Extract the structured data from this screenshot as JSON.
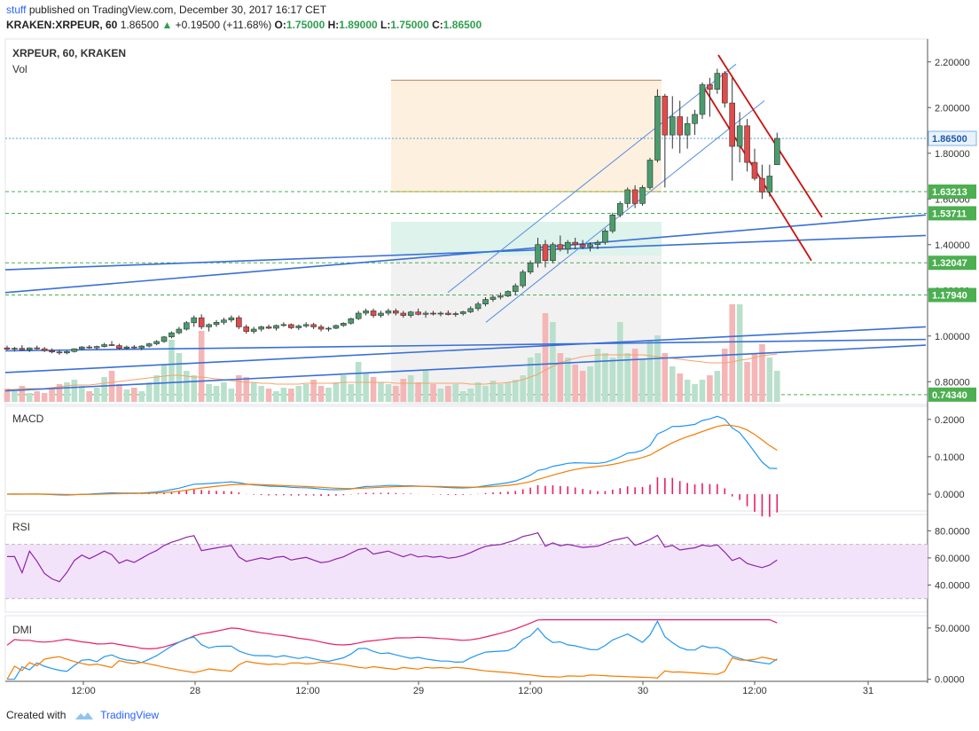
{
  "header": {
    "author": "stuff",
    "published_text": "published on TradingView.com, December 30, 2017 16:17 CET",
    "symbol": "KRAKEN:XRPEUR, 60",
    "last": "1.86500",
    "change": "+0.19500 (+11.68%)",
    "o_label": "O:",
    "o": "1.75000",
    "h_label": "H:",
    "h": "1.89000",
    "l_label": "L:",
    "l": "1.75000",
    "c_label": "C:",
    "c": "1.86500"
  },
  "footer": {
    "created_with": "Created with",
    "brand": "TradingView"
  },
  "colors": {
    "up": "#4a9c6d",
    "down": "#e04b4b",
    "trend": "#3a6fd8",
    "red_trend": "#cc1111",
    "macd": "#2196f3",
    "signal": "#f57c00",
    "rsi": "#8e24aa",
    "dmi_adx": "#e91e63",
    "dmi_plus": "#2196f3",
    "dmi_minus": "#f57c00"
  },
  "chart_data": {
    "type": "candlestick",
    "panel_title": "XRPEUR, 60, KRAKEN",
    "volume_label": "Vol",
    "x_ticks": [
      "12:00",
      "28",
      "12:00",
      "29",
      "12:00",
      "30",
      "12:00",
      "31"
    ],
    "price_axis": [
      "2.20000",
      "2.00000",
      "1.80000",
      "1.60000",
      "1.40000",
      "1.20000",
      "1.00000",
      "0.80000"
    ],
    "price_range": [
      0.7,
      2.3
    ],
    "price_tags": [
      {
        "label": "1.86500",
        "value": 1.865,
        "style": "current"
      },
      {
        "label": "1.63213",
        "value": 1.63213,
        "style": "level"
      },
      {
        "label": "1.53711",
        "value": 1.53711,
        "style": "level"
      },
      {
        "label": "1.32047",
        "value": 1.32047,
        "style": "level"
      },
      {
        "label": "1.17940",
        "value": 1.1794,
        "style": "level"
      },
      {
        "label": "0.74340",
        "value": 0.7434,
        "style": "level"
      }
    ],
    "candles": [
      [
        0.948,
        0.958,
        0.938,
        0.942
      ],
      [
        0.942,
        0.952,
        0.932,
        0.946
      ],
      [
        0.946,
        0.96,
        0.938,
        0.94
      ],
      [
        0.94,
        0.95,
        0.93,
        0.948
      ],
      [
        0.948,
        0.958,
        0.94,
        0.944
      ],
      [
        0.944,
        0.952,
        0.93,
        0.936
      ],
      [
        0.936,
        0.946,
        0.924,
        0.93
      ],
      [
        0.93,
        0.94,
        0.918,
        0.926
      ],
      [
        0.926,
        0.936,
        0.92,
        0.932
      ],
      [
        0.932,
        0.946,
        0.928,
        0.944
      ],
      [
        0.944,
        0.956,
        0.94,
        0.952
      ],
      [
        0.952,
        0.96,
        0.944,
        0.948
      ],
      [
        0.948,
        0.958,
        0.94,
        0.954
      ],
      [
        0.954,
        0.97,
        0.95,
        0.962
      ],
      [
        0.962,
        0.978,
        0.956,
        0.958
      ],
      [
        0.958,
        0.966,
        0.94,
        0.946
      ],
      [
        0.946,
        0.958,
        0.94,
        0.952
      ],
      [
        0.952,
        0.96,
        0.944,
        0.948
      ],
      [
        0.948,
        0.96,
        0.938,
        0.956
      ],
      [
        0.956,
        0.97,
        0.95,
        0.966
      ],
      [
        0.966,
        0.982,
        0.96,
        0.976
      ],
      [
        0.976,
        1.0,
        0.97,
        0.996
      ],
      [
        0.996,
        1.02,
        0.99,
        1.014
      ],
      [
        1.014,
        1.04,
        1.008,
        1.03
      ],
      [
        1.03,
        1.065,
        1.024,
        1.058
      ],
      [
        1.058,
        1.09,
        1.04,
        1.08
      ],
      [
        1.08,
        1.095,
        1.03,
        1.04
      ],
      [
        1.04,
        1.055,
        1.02,
        1.05
      ],
      [
        1.05,
        1.07,
        1.04,
        1.06
      ],
      [
        1.06,
        1.08,
        1.05,
        1.07
      ],
      [
        1.07,
        1.09,
        1.06,
        1.08
      ],
      [
        1.08,
        1.09,
        1.03,
        1.04
      ],
      [
        1.04,
        1.05,
        1.01,
        1.02
      ],
      [
        1.02,
        1.04,
        1.01,
        1.03
      ],
      [
        1.03,
        1.045,
        1.02,
        1.04
      ],
      [
        1.04,
        1.05,
        1.03,
        1.034
      ],
      [
        1.034,
        1.05,
        1.024,
        1.046
      ],
      [
        1.046,
        1.06,
        1.04,
        1.05
      ],
      [
        1.05,
        1.055,
        1.03,
        1.036
      ],
      [
        1.036,
        1.05,
        1.026,
        1.044
      ],
      [
        1.044,
        1.06,
        1.036,
        1.05
      ],
      [
        1.05,
        1.058,
        1.03,
        1.04
      ],
      [
        1.04,
        1.05,
        1.02,
        1.03
      ],
      [
        1.03,
        1.04,
        1.02,
        1.034
      ],
      [
        1.034,
        1.05,
        1.03,
        1.046
      ],
      [
        1.046,
        1.06,
        1.04,
        1.056
      ],
      [
        1.056,
        1.08,
        1.05,
        1.076
      ],
      [
        1.076,
        1.11,
        1.07,
        1.1
      ],
      [
        1.1,
        1.12,
        1.09,
        1.11
      ],
      [
        1.11,
        1.12,
        1.08,
        1.09
      ],
      [
        1.09,
        1.11,
        1.08,
        1.1
      ],
      [
        1.1,
        1.12,
        1.09,
        1.11
      ],
      [
        1.11,
        1.12,
        1.09,
        1.1
      ],
      [
        1.1,
        1.11,
        1.08,
        1.09
      ],
      [
        1.09,
        1.11,
        1.08,
        1.105
      ],
      [
        1.105,
        1.12,
        1.09,
        1.095
      ],
      [
        1.095,
        1.11,
        1.08,
        1.1
      ],
      [
        1.1,
        1.11,
        1.09,
        1.096
      ],
      [
        1.096,
        1.108,
        1.086,
        1.1
      ],
      [
        1.1,
        1.112,
        1.09,
        1.094
      ],
      [
        1.094,
        1.106,
        1.084,
        1.098
      ],
      [
        1.098,
        1.11,
        1.09,
        1.106
      ],
      [
        1.106,
        1.13,
        1.1,
        1.12
      ],
      [
        1.12,
        1.15,
        1.11,
        1.14
      ],
      [
        1.14,
        1.17,
        1.13,
        1.16
      ],
      [
        1.16,
        1.18,
        1.15,
        1.17
      ],
      [
        1.17,
        1.19,
        1.16,
        1.175
      ],
      [
        1.175,
        1.2,
        1.17,
        1.195
      ],
      [
        1.195,
        1.23,
        1.18,
        1.22
      ],
      [
        1.22,
        1.29,
        1.21,
        1.28
      ],
      [
        1.28,
        1.33,
        1.27,
        1.32
      ],
      [
        1.32,
        1.43,
        1.3,
        1.4
      ],
      [
        1.4,
        1.42,
        1.3,
        1.33
      ],
      [
        1.33,
        1.41,
        1.32,
        1.4
      ],
      [
        1.4,
        1.44,
        1.37,
        1.38
      ],
      [
        1.38,
        1.42,
        1.36,
        1.41
      ],
      [
        1.41,
        1.43,
        1.38,
        1.4
      ],
      [
        1.4,
        1.42,
        1.38,
        1.39
      ],
      [
        1.39,
        1.41,
        1.37,
        1.4
      ],
      [
        1.4,
        1.42,
        1.38,
        1.41
      ],
      [
        1.41,
        1.47,
        1.4,
        1.46
      ],
      [
        1.46,
        1.54,
        1.45,
        1.53
      ],
      [
        1.53,
        1.59,
        1.52,
        1.58
      ],
      [
        1.58,
        1.65,
        1.56,
        1.64
      ],
      [
        1.64,
        1.66,
        1.56,
        1.58
      ],
      [
        1.58,
        1.66,
        1.57,
        1.65
      ],
      [
        1.65,
        1.78,
        1.64,
        1.77
      ],
      [
        1.77,
        2.08,
        1.76,
        2.05
      ],
      [
        2.05,
        2.06,
        1.65,
        1.88
      ],
      [
        1.88,
        2.05,
        1.82,
        1.96
      ],
      [
        1.96,
        2.03,
        1.8,
        1.88
      ],
      [
        1.88,
        1.96,
        1.82,
        1.93
      ],
      [
        1.93,
        1.99,
        1.88,
        1.97
      ],
      [
        1.97,
        2.11,
        1.95,
        2.1
      ],
      [
        2.1,
        2.13,
        1.96,
        2.08
      ],
      [
        2.08,
        2.17,
        2.06,
        2.15
      ],
      [
        2.15,
        2.16,
        2.0,
        2.02
      ],
      [
        2.02,
        2.13,
        1.68,
        1.83
      ],
      [
        1.83,
        1.98,
        1.76,
        1.92
      ],
      [
        1.92,
        1.95,
        1.72,
        1.76
      ],
      [
        1.76,
        1.82,
        1.68,
        1.69
      ],
      [
        1.69,
        1.75,
        1.6,
        1.63
      ],
      [
        1.63,
        1.75,
        1.61,
        1.7
      ],
      [
        1.75,
        1.89,
        1.75,
        1.865
      ]
    ],
    "volume": [
      0.15,
      0.12,
      0.18,
      0.1,
      0.12,
      0.1,
      0.15,
      0.2,
      0.22,
      0.25,
      0.18,
      0.12,
      0.16,
      0.28,
      0.35,
      0.2,
      0.14,
      0.16,
      0.12,
      0.22,
      0.3,
      0.42,
      0.7,
      0.55,
      0.35,
      0.3,
      0.8,
      0.2,
      0.18,
      0.22,
      0.15,
      0.3,
      0.28,
      0.22,
      0.18,
      0.15,
      0.12,
      0.16,
      0.15,
      0.18,
      0.2,
      0.25,
      0.18,
      0.16,
      0.22,
      0.3,
      0.2,
      0.45,
      0.32,
      0.28,
      0.22,
      0.2,
      0.18,
      0.26,
      0.3,
      0.22,
      0.35,
      0.2,
      0.15,
      0.18,
      0.2,
      0.12,
      0.15,
      0.22,
      0.18,
      0.24,
      0.2,
      0.22,
      0.25,
      0.3,
      0.5,
      0.55,
      1.0,
      0.9,
      0.55,
      0.5,
      0.42,
      0.35,
      0.4,
      0.6,
      0.55,
      0.5,
      0.9,
      0.55,
      0.6,
      0.48,
      0.7,
      0.75,
      0.55,
      0.4,
      0.32,
      0.25,
      0.2,
      0.25,
      0.3,
      0.35,
      0.6,
      1.1,
      1.1,
      0.45,
      0.55,
      0.65,
      0.5,
      0.35
    ],
    "volume_ma": [
      0.14,
      0.14,
      0.15,
      0.15,
      0.15,
      0.15,
      0.16,
      0.17,
      0.18,
      0.19,
      0.19,
      0.19,
      0.2,
      0.21,
      0.22,
      0.23,
      0.24,
      0.25,
      0.26,
      0.27,
      0.28,
      0.29,
      0.3,
      0.3,
      0.29,
      0.28,
      0.28,
      0.27,
      0.26,
      0.25,
      0.24,
      0.23,
      0.22,
      0.22,
      0.21,
      0.21,
      0.2,
      0.2,
      0.2,
      0.2,
      0.21,
      0.21,
      0.21,
      0.21,
      0.21,
      0.22,
      0.22,
      0.22,
      0.22,
      0.22,
      0.22,
      0.22,
      0.21,
      0.21,
      0.21,
      0.21,
      0.21,
      0.21,
      0.21,
      0.21,
      0.21,
      0.21,
      0.2,
      0.2,
      0.2,
      0.21,
      0.21,
      0.22,
      0.23,
      0.25,
      0.28,
      0.31,
      0.36,
      0.4,
      0.44,
      0.47,
      0.49,
      0.51,
      0.52,
      0.53,
      0.53,
      0.53,
      0.53,
      0.53,
      0.53,
      0.53,
      0.52,
      0.51,
      0.5,
      0.49,
      0.48,
      0.47,
      0.46,
      0.45,
      0.44,
      0.44,
      0.44,
      0.45,
      0.47,
      0.48,
      0.5,
      0.52,
      0.53,
      0.54
    ],
    "trendlines": [
      {
        "p1": [
          0,
          0.76
        ],
        "p2": [
          1,
          0.96
        ],
        "color": "trend"
      },
      {
        "p1": [
          0,
          0.84
        ],
        "p2": [
          1,
          1.04
        ],
        "color": "trend"
      },
      {
        "p1": [
          0,
          0.935
        ],
        "p2": [
          1,
          0.985
        ],
        "color": "trend"
      },
      {
        "p1": [
          0,
          1.29
        ],
        "p2": [
          1,
          1.44
        ],
        "color": "trend"
      },
      {
        "p1": [
          0,
          1.19
        ],
        "p2": [
          1,
          1.53
        ],
        "color": "trend"
      }
    ],
    "macd": {
      "axis": [
        "0.2000",
        "0.1000",
        "0.0000"
      ],
      "range": [
        -0.045,
        0.235
      ]
    },
    "rsi": {
      "axis": [
        "80.0000",
        "60.0000",
        "40.0000"
      ],
      "range": [
        20,
        92
      ],
      "upper": 70,
      "lower": 30
    },
    "dmi": {
      "axis": [
        "50.0000",
        "0.0000"
      ],
      "range": [
        -2,
        62
      ]
    }
  }
}
